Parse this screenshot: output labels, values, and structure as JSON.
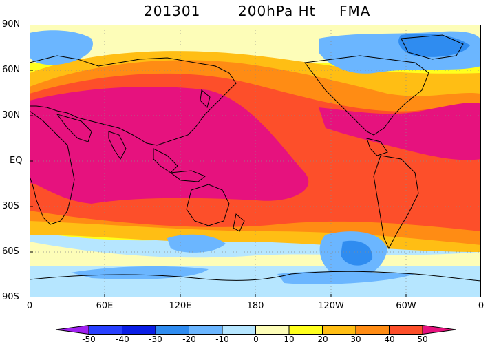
{
  "title": {
    "date": "201301",
    "variable": "200hPa Ht",
    "season": "FMA"
  },
  "map": {
    "projection": "cylindrical equidistant",
    "lat_labels": [
      "90N",
      "60N",
      "30N",
      "EQ",
      "30S",
      "60S",
      "90S"
    ],
    "lon_labels": [
      "0",
      "60E",
      "120E",
      "180",
      "120W",
      "60W",
      "0"
    ],
    "grid": "dotted"
  },
  "colorbar": {
    "labels": [
      "-50",
      "-40",
      "-30",
      "-20",
      "-10",
      "0",
      "10",
      "20",
      "30",
      "40",
      "50"
    ],
    "colors": [
      "#a020f0",
      "#2840ff",
      "#0a1ee6",
      "#2f8cf0",
      "#6bb6ff",
      "#b6e6ff",
      "#fdfdb8",
      "#ffff1e",
      "#ffbe14",
      "#ff8c14",
      "#fd4f2a",
      "#e6127e"
    ]
  }
}
